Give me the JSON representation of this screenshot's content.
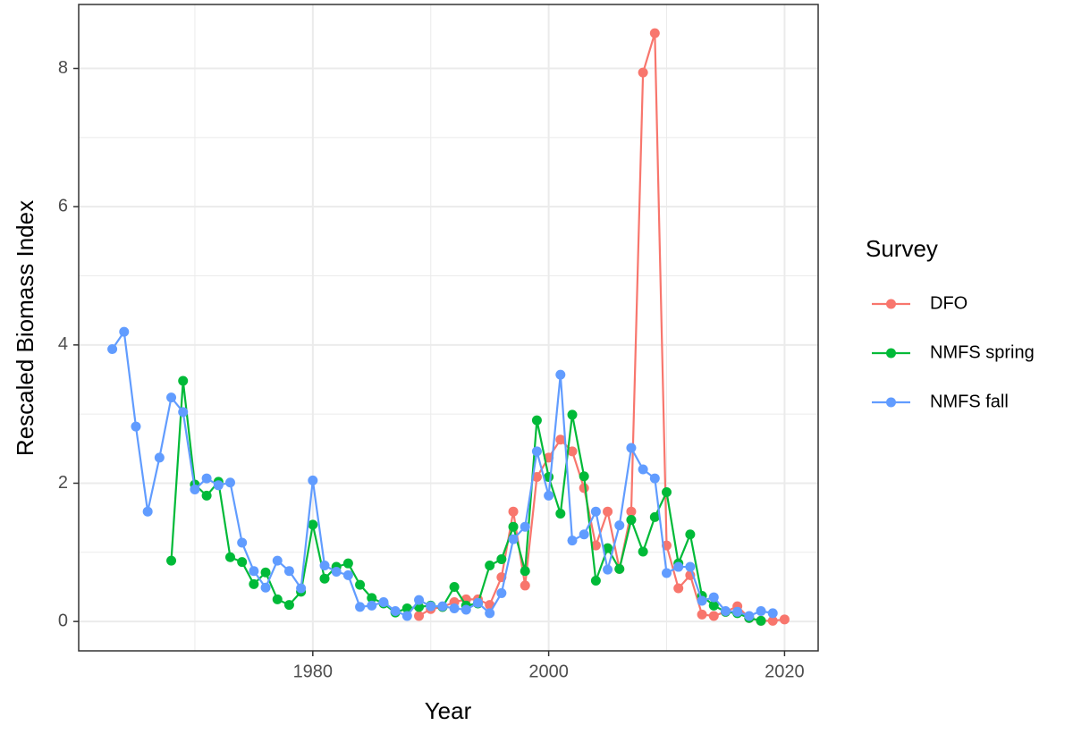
{
  "chart_data": {
    "type": "line",
    "x_label": "Year",
    "y_label": "Rescaled Biomass Index",
    "legend_title": "Survey",
    "legend": "right",
    "grid": true,
    "xlim": [
      1960.15,
      2022.85
    ],
    "ylim": [
      -0.425,
      8.925
    ],
    "xticks": [
      1980,
      2000,
      2020
    ],
    "yticks": [
      0,
      2,
      4,
      6,
      8
    ],
    "xminor": [
      1970,
      1990,
      2010
    ],
    "yminor": [
      1,
      3,
      5,
      7
    ],
    "x": [
      1963,
      1964,
      1965,
      1966,
      1967,
      1968,
      1969,
      1970,
      1971,
      1972,
      1973,
      1974,
      1975,
      1976,
      1977,
      1978,
      1979,
      1980,
      1981,
      1982,
      1983,
      1984,
      1985,
      1986,
      1987,
      1988,
      1989,
      1990,
      1991,
      1992,
      1993,
      1994,
      1995,
      1996,
      1997,
      1998,
      1999,
      2000,
      2001,
      2002,
      2003,
      2004,
      2005,
      2006,
      2007,
      2008,
      2009,
      2010,
      2011,
      2012,
      2013,
      2014,
      2015,
      2016,
      2017,
      2018,
      2019,
      2020
    ],
    "series": [
      {
        "name": "DFO",
        "color": "#F8766D",
        "values": [
          null,
          null,
          null,
          null,
          null,
          null,
          null,
          null,
          null,
          null,
          null,
          null,
          null,
          null,
          null,
          null,
          null,
          null,
          null,
          null,
          null,
          null,
          null,
          null,
          null,
          null,
          0.08,
          0.18,
          0.21,
          0.28,
          0.32,
          0.32,
          0.24,
          0.64,
          1.59,
          0.52,
          2.09,
          2.37,
          2.63,
          2.46,
          1.93,
          1.1,
          1.59,
          0.76,
          1.59,
          7.94,
          8.51,
          1.1,
          0.48,
          0.67,
          0.1,
          0.08,
          0.14,
          0.22,
          0.05,
          0.01,
          0.01,
          0.03
        ]
      },
      {
        "name": "NMFS spring",
        "color": "#00BA38",
        "values": [
          null,
          null,
          null,
          null,
          null,
          0.88,
          3.48,
          1.98,
          1.82,
          2.02,
          0.93,
          0.86,
          0.54,
          0.71,
          0.32,
          0.24,
          0.43,
          1.4,
          0.62,
          0.79,
          0.84,
          0.53,
          0.34,
          0.26,
          0.13,
          0.19,
          0.21,
          0.23,
          0.21,
          0.5,
          0.23,
          0.26,
          0.81,
          0.9,
          1.37,
          0.73,
          2.91,
          2.09,
          1.56,
          2.99,
          2.1,
          0.59,
          1.06,
          0.76,
          1.47,
          1.01,
          1.51,
          1.87,
          0.84,
          1.26,
          0.37,
          0.23,
          0.14,
          0.12,
          0.05,
          0.01,
          null,
          null
        ]
      },
      {
        "name": "NMFS fall",
        "color": "#619CFF",
        "values": [
          3.94,
          4.19,
          2.82,
          1.59,
          2.37,
          3.24,
          3.03,
          1.91,
          2.07,
          1.97,
          2.01,
          1.14,
          0.73,
          0.49,
          0.88,
          0.73,
          0.48,
          2.04,
          0.81,
          0.72,
          0.67,
          0.21,
          0.23,
          0.28,
          0.15,
          0.08,
          0.31,
          0.22,
          0.22,
          0.19,
          0.17,
          0.27,
          0.12,
          0.41,
          1.19,
          1.37,
          2.46,
          1.82,
          3.57,
          1.17,
          1.26,
          1.59,
          0.75,
          1.39,
          2.51,
          2.2,
          2.07,
          0.7,
          0.79,
          0.79,
          0.3,
          0.35,
          0.15,
          0.14,
          0.08,
          0.15,
          0.12,
          null
        ]
      }
    ]
  }
}
